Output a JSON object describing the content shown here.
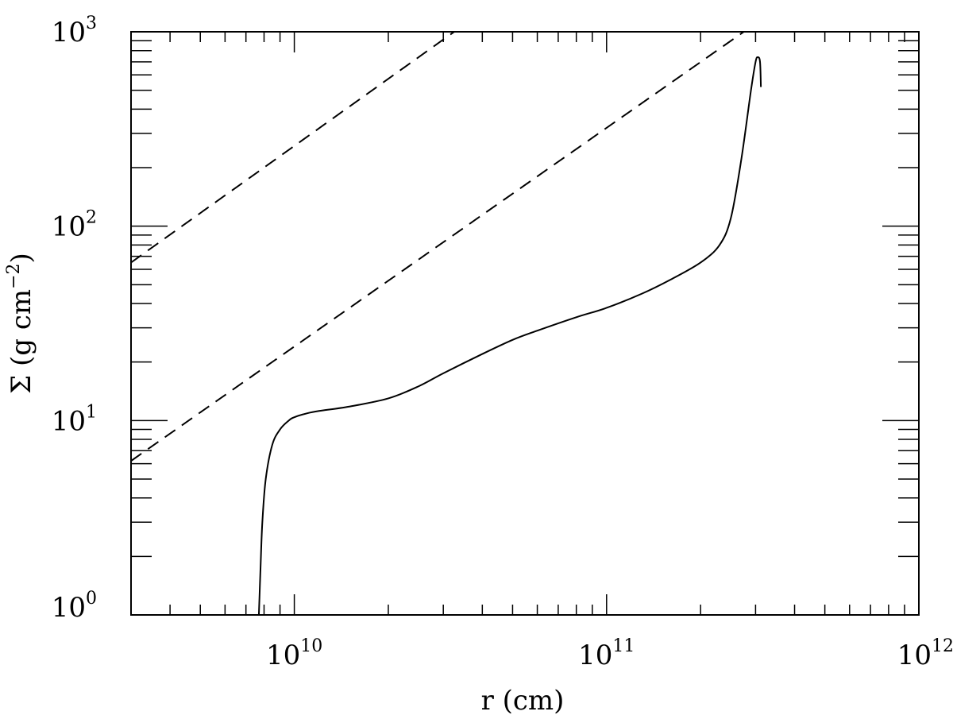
{
  "chart_data": {
    "type": "line",
    "xscale": "log",
    "yscale": "log",
    "xlim": [
      3000000000.0,
      1000000000000.0
    ],
    "ylim": [
      1,
      1000
    ],
    "xlabel": "r  (cm)",
    "ylabel": {
      "prefix": "Σ  (g  cm",
      "exponent": "−2",
      "suffix": ")"
    },
    "x_ticks": [
      {
        "value": 10000000000.0,
        "base": "10",
        "exp": "10"
      },
      {
        "value": 100000000000.0,
        "base": "10",
        "exp": "11"
      },
      {
        "value": 1000000000000.0,
        "base": "10",
        "exp": "12"
      }
    ],
    "y_ticks": [
      {
        "value": 1,
        "base": "10",
        "exp": "0"
      },
      {
        "value": 10,
        "base": "10",
        "exp": "1"
      },
      {
        "value": 100,
        "base": "10",
        "exp": "2"
      },
      {
        "value": 1000,
        "base": "10",
        "exp": "3"
      }
    ],
    "series": [
      {
        "style": "solid",
        "color": "#000000",
        "x": [
          7700000000.0,
          7800000000.0,
          7900000000.0,
          8100000000.0,
          8500000000.0,
          9000000000.0,
          9600000000.0,
          10000000000.0,
          11000000000.0,
          12000000000.0,
          15000000000.0,
          20000000000.0,
          25000000000.0,
          30000000000.0,
          40000000000.0,
          50000000000.0,
          60000000000.0,
          80000000000.0,
          100000000000.0,
          130000000000.0,
          160000000000.0,
          200000000000.0,
          230000000000.0,
          250000000000.0,
          270000000000.0,
          290000000000.0,
          300000000000.0,
          305000000000.0,
          310000000000.0,
          312000000000.0
        ],
        "y": [
          1.0,
          1.8,
          3.0,
          5.0,
          7.5,
          9.0,
          10.0,
          10.4,
          10.9,
          11.2,
          11.8,
          13.0,
          15.0,
          17.5,
          22.0,
          26.0,
          29.0,
          34.0,
          38.0,
          45.0,
          53.0,
          65.0,
          80.0,
          110.0,
          220.0,
          500.0,
          700.0,
          740.0,
          700.0,
          520.0
        ]
      },
      {
        "style": "dashed",
        "color": "#000000",
        "x": [
          3000000000.0,
          32500000000.0
        ],
        "y": [
          65,
          1000
        ]
      },
      {
        "style": "dashed",
        "color": "#000000",
        "x": [
          3000000000.0,
          275000000000.0
        ],
        "y": [
          6.2,
          1000
        ]
      }
    ],
    "grid": false,
    "legend": "none"
  }
}
